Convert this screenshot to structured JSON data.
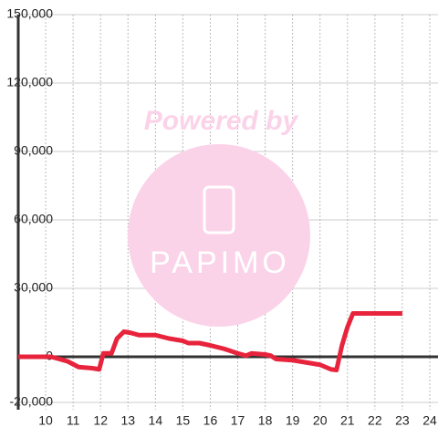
{
  "chart_data": {
    "type": "line",
    "watermark": [
      "Powered by",
      "PAPIMO"
    ],
    "x": [
      9.0,
      10.2,
      10.5,
      10.8,
      11.2,
      11.7,
      11.95,
      12.1,
      12.4,
      12.6,
      12.85,
      13.1,
      13.4,
      14.0,
      14.5,
      15.0,
      15.2,
      15.6,
      16.0,
      16.5,
      17.0,
      17.3,
      17.5,
      18.0,
      18.2,
      18.4,
      19.0,
      19.5,
      20.0,
      20.4,
      20.6,
      20.8,
      21.0,
      21.2,
      23.0
    ],
    "series": [
      {
        "color": "#e8243c",
        "values": [
          0,
          0,
          -1000,
          -2000,
          -4500,
          -5000,
          -5500,
          1500,
          1500,
          8000,
          11000,
          10500,
          9500,
          9500,
          8000,
          7000,
          6000,
          6000,
          5000,
          3500,
          1500,
          500,
          1500,
          1000,
          500,
          -1000,
          -1500,
          -2500,
          -3500,
          -5500,
          -5800,
          5000,
          13000,
          19000,
          19000
        ]
      }
    ],
    "xlim": [
      9,
      24.3
    ],
    "xticks": [
      10,
      11,
      12,
      13,
      14,
      15,
      16,
      17,
      18,
      19,
      20,
      21,
      22,
      23,
      24
    ],
    "ylim": [
      -20000,
      150000
    ],
    "yticks": [
      {
        "value": -20000,
        "label": "-20,000"
      },
      0,
      {
        "value": 30000,
        "label": "30,000"
      },
      {
        "value": 60000,
        "label": "60,000"
      },
      {
        "value": 90000,
        "label": "90,000"
      },
      {
        "value": 120000,
        "label": "120,000"
      },
      {
        "value": 150000,
        "label": "150,000"
      }
    ],
    "grid": true
  }
}
